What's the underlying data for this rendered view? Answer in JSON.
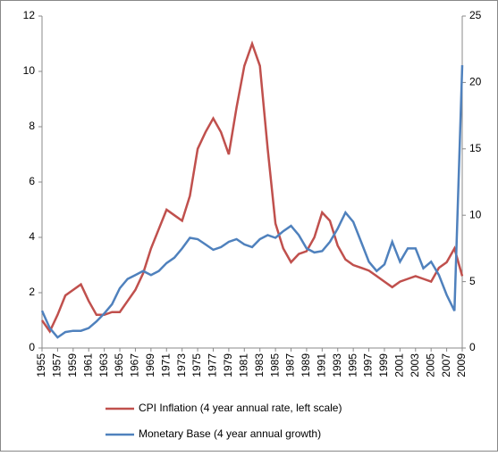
{
  "chart_data": {
    "type": "line",
    "x": [
      1955,
      1956,
      1957,
      1958,
      1959,
      1960,
      1961,
      1962,
      1963,
      1964,
      1965,
      1966,
      1967,
      1968,
      1969,
      1970,
      1971,
      1972,
      1973,
      1974,
      1975,
      1976,
      1977,
      1978,
      1979,
      1980,
      1981,
      1982,
      1983,
      1984,
      1985,
      1986,
      1987,
      1988,
      1989,
      1990,
      1991,
      1992,
      1993,
      1994,
      1995,
      1996,
      1997,
      1998,
      1999,
      2000,
      2001,
      2002,
      2003,
      2004,
      2005,
      2006,
      2007,
      2008,
      2009
    ],
    "series": [
      {
        "name": "CPI Inflation (4 year annual rate, left scale)",
        "color": "#c0504d",
        "values": [
          1.0,
          0.6,
          1.2,
          1.9,
          2.1,
          2.3,
          1.7,
          1.2,
          1.2,
          1.3,
          1.3,
          1.7,
          2.1,
          2.7,
          3.6,
          4.3,
          5.0,
          4.8,
          4.6,
          5.5,
          7.2,
          7.8,
          8.3,
          7.8,
          7.0,
          8.7,
          10.2,
          11.0,
          10.2,
          7.2,
          4.5,
          3.6,
          3.1,
          3.4,
          3.5,
          4.0,
          4.9,
          4.6,
          3.7,
          3.2,
          3.0,
          2.9,
          2.8,
          2.6,
          2.4,
          2.2,
          2.4,
          2.5,
          2.6,
          2.5,
          2.4,
          2.9,
          3.1,
          3.6,
          2.6
        ]
      },
      {
        "name": "Monetary Base (4 year annual growth)",
        "color": "#4f81bd",
        "axis": "y2",
        "values": [
          2.8,
          1.5,
          0.8,
          1.2,
          1.3,
          1.3,
          1.5,
          2.0,
          2.6,
          3.3,
          4.5,
          5.2,
          5.5,
          5.8,
          5.5,
          5.8,
          6.4,
          6.8,
          7.5,
          8.3,
          8.2,
          7.8,
          7.4,
          7.6,
          8.0,
          8.2,
          7.8,
          7.6,
          8.2,
          8.5,
          8.3,
          8.8,
          9.2,
          8.5,
          7.5,
          7.2,
          7.3,
          8.0,
          9.0,
          10.2,
          9.5,
          8.0,
          6.5,
          5.8,
          6.3,
          8.0,
          6.5,
          7.5,
          7.5,
          6.0,
          6.5,
          5.5,
          4.0,
          2.8,
          21.3
        ]
      }
    ],
    "xlim": [
      1955,
      2009
    ],
    "xticks": [
      1955,
      1957,
      1959,
      1961,
      1963,
      1965,
      1967,
      1969,
      1971,
      1973,
      1975,
      1977,
      1979,
      1981,
      1983,
      1985,
      1987,
      1989,
      1991,
      1993,
      1995,
      1997,
      1999,
      2001,
      2003,
      2005,
      2007,
      2009
    ],
    "ylim": [
      0,
      12
    ],
    "yticks": [
      0,
      2,
      4,
      6,
      8,
      10,
      12
    ],
    "y2lim": [
      0,
      25
    ],
    "y2ticks": [
      0,
      5,
      10,
      15,
      20,
      25
    ]
  }
}
